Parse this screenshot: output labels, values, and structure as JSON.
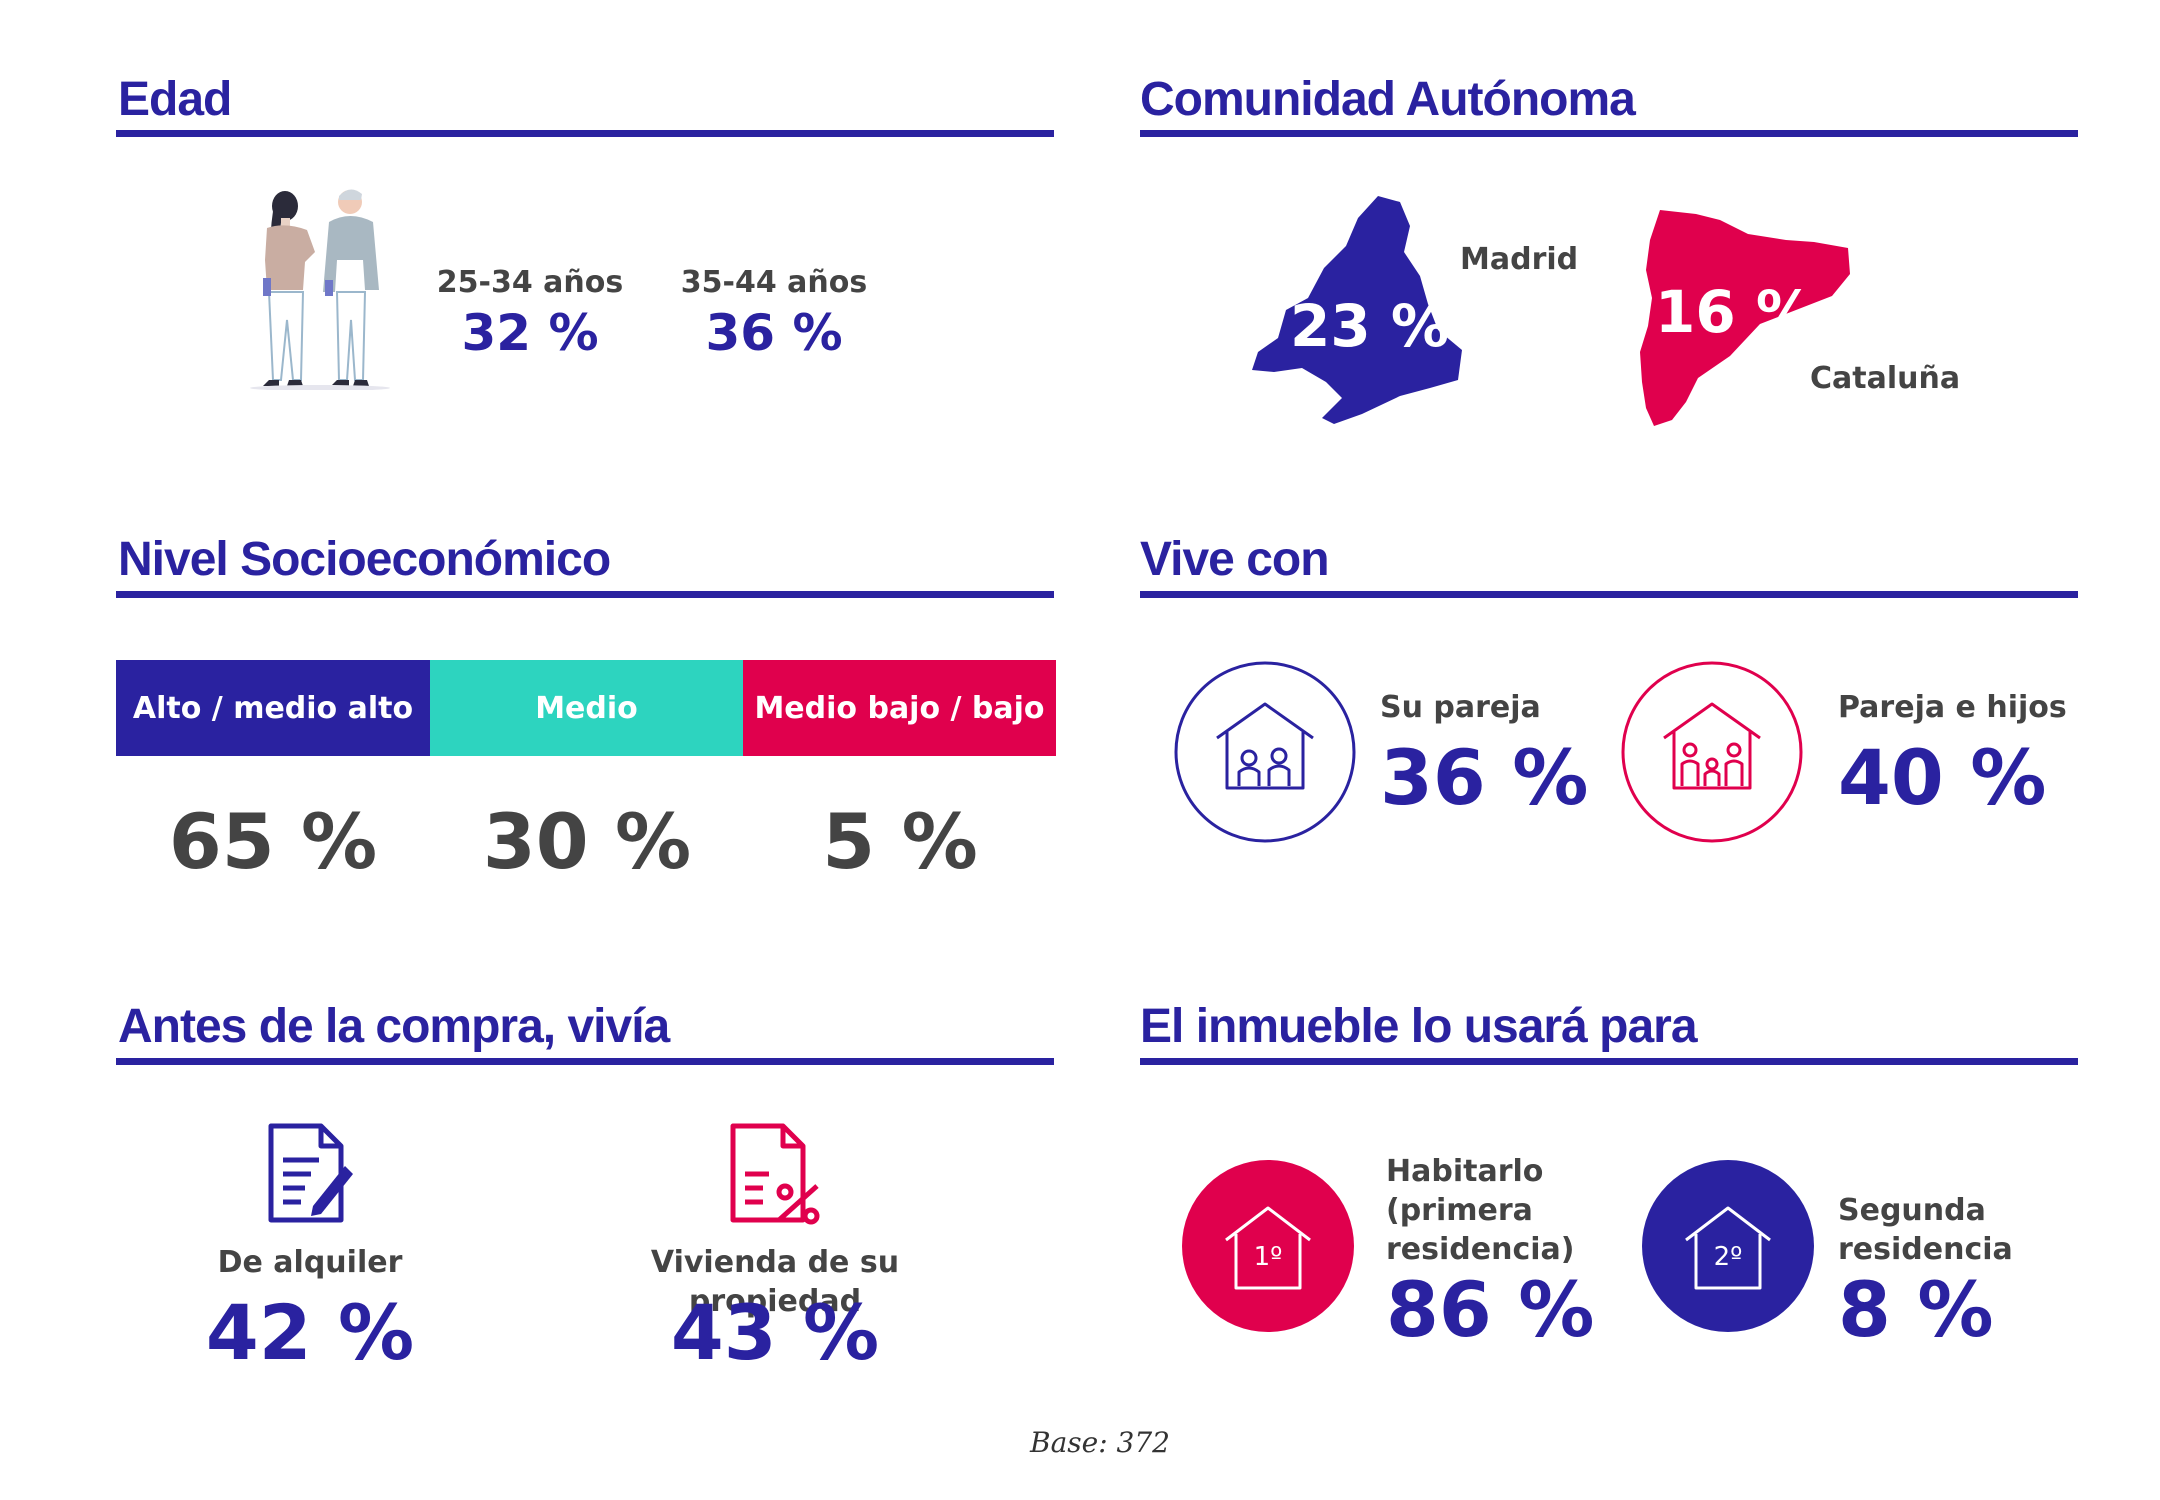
{
  "edad": {
    "title": "Edad",
    "groups": [
      {
        "label": "25-34 años",
        "value": "32 %"
      },
      {
        "label": "35-44 años",
        "value": "36 %"
      }
    ]
  },
  "comunidad": {
    "title": "Comunidad Autónoma",
    "regions": [
      {
        "name": "Madrid",
        "value": "23 %",
        "color": "#2a22a0"
      },
      {
        "name": "Cataluña",
        "value": "16 %",
        "color": "#e0004d"
      }
    ]
  },
  "nivel": {
    "title": "Nivel Socioeconómico",
    "segments": [
      {
        "label": "Alto / medio alto",
        "value": "65 %",
        "color": "#2a22a0"
      },
      {
        "label": "Medio",
        "value": "30 %",
        "color": "#2dd4bf"
      },
      {
        "label": "Medio bajo / bajo",
        "value": "5 %",
        "color": "#e0004d"
      }
    ]
  },
  "vive": {
    "title": "Vive con",
    "items": [
      {
        "label": "Su pareja",
        "value": "36 %",
        "icon": "couple-house-icon",
        "color": "#2a22a0"
      },
      {
        "label": "Pareja e hijos",
        "value": "40 %",
        "icon": "family-house-icon",
        "color": "#e0004d"
      }
    ]
  },
  "antes": {
    "title": "Antes de la compra, vivía",
    "items": [
      {
        "label": "De alquiler",
        "value": "42 %",
        "icon": "contract-document-icon"
      },
      {
        "label": "Vivienda de su propiedad",
        "value": "43 %",
        "icon": "percent-document-icon"
      }
    ]
  },
  "inmueble": {
    "title": "El inmueble lo usará para",
    "items": [
      {
        "label_lines": [
          "Habitarlo",
          "(primera",
          "residencia)"
        ],
        "value": "86 %",
        "badge": "1º",
        "color": "#e0004d"
      },
      {
        "label_lines": [
          "Segunda",
          "residencia"
        ],
        "value": "8 %",
        "badge": "2º",
        "color": "#2a22a0"
      }
    ]
  },
  "footer": {
    "base": "Base: 372"
  }
}
